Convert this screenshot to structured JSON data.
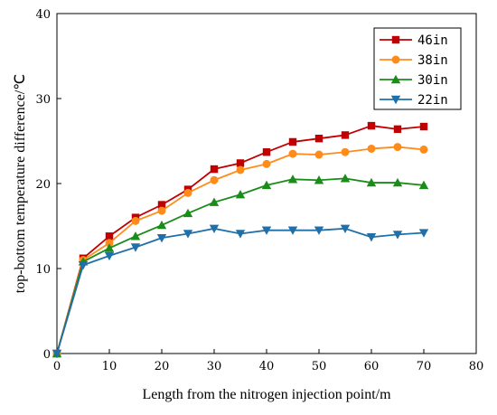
{
  "chart_data": {
    "type": "line",
    "xlabel": "Length from the nitrogen injection point/m",
    "ylabel": "top-bottom temperature difference/℃",
    "xlim": [
      0,
      80
    ],
    "ylim": [
      0,
      40
    ],
    "xticks": [
      0,
      10,
      20,
      30,
      40,
      50,
      60,
      70,
      80
    ],
    "yticks": [
      0,
      10,
      20,
      30,
      40
    ],
    "grid": false,
    "legend_position": "top-right",
    "x": [
      0,
      5,
      10,
      15,
      20,
      25,
      30,
      35,
      40,
      45,
      50,
      55,
      60,
      65,
      70
    ],
    "series": [
      {
        "name": "46in",
        "color": "#c00000",
        "marker": "square",
        "values": [
          0,
          11.2,
          13.8,
          16.0,
          17.5,
          19.3,
          21.7,
          22.4,
          23.7,
          24.9,
          25.3,
          25.7,
          26.8,
          26.4,
          26.7
        ]
      },
      {
        "name": "38in",
        "color": "#ff8c1a",
        "marker": "circle",
        "values": [
          0,
          11.0,
          13.0,
          15.6,
          16.8,
          18.9,
          20.4,
          21.6,
          22.3,
          23.5,
          23.4,
          23.7,
          24.1,
          24.3,
          24.0
        ]
      },
      {
        "name": "30in",
        "color": "#1a8c1a",
        "marker": "triangle-up",
        "values": [
          0,
          10.8,
          12.4,
          13.8,
          15.1,
          16.5,
          17.8,
          18.7,
          19.8,
          20.5,
          20.4,
          20.6,
          20.1,
          20.1,
          19.8
        ]
      },
      {
        "name": "22in",
        "color": "#1f6fa8",
        "marker": "triangle-down",
        "values": [
          0,
          10.4,
          11.5,
          12.5,
          13.6,
          14.1,
          14.7,
          14.1,
          14.5,
          14.5,
          14.5,
          14.7,
          13.7,
          14.0,
          14.2
        ]
      }
    ]
  }
}
